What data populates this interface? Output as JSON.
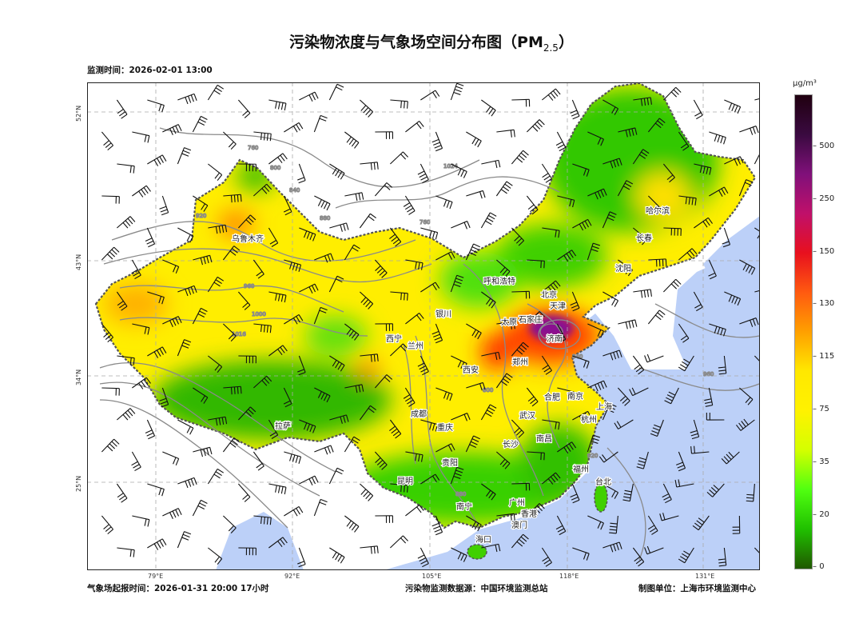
{
  "title": "污染物浓度与气象场空间分布图（PM",
  "title_sub": "2.5",
  "title_close": "）",
  "monitor_time": "监测时间：2026-02-01 13:00",
  "forecast_time": "气象场起报时间：2026-01-31 20:00 17小时",
  "data_source": "污染物监测数据源：中国环境监测总站",
  "producer": "制图单位：上海市环境监测中心",
  "lon_ticks": [
    "79°E",
    "92°E",
    "105°E",
    "118°E",
    "131°E"
  ],
  "lat_ticks": [
    "52°N",
    "43°N",
    "34°N",
    "25°N"
  ],
  "colorbar": {
    "unit": "μg/m³",
    "ticks": [
      "500",
      "250",
      "150",
      "130",
      "115",
      "75",
      "35",
      "20",
      "0"
    ],
    "colors": [
      "#200010",
      "#3a0a40",
      "#80107a",
      "#c0106a",
      "#e8101e",
      "#ff5a10",
      "#ffa000",
      "#ffe800",
      "#fff200",
      "#d4ff00",
      "#50ff10",
      "#20c000",
      "#205800"
    ]
  },
  "cities": [
    "乌鲁木齐",
    "哈尔滨",
    "长春",
    "沈阳",
    "呼和浩特",
    "北京",
    "天津",
    "银川",
    "太原",
    "石家庄",
    "西宁",
    "兰州",
    "济南",
    "西安",
    "郑州",
    "合肥",
    "南京",
    "上海",
    "成都",
    "武汉",
    "杭州",
    "重庆",
    "拉萨",
    "长沙",
    "南昌",
    "贵阳",
    "福州",
    "昆明",
    "台北",
    "南宁",
    "广州",
    "香港",
    "澳门",
    "海口"
  ],
  "contour_labels": [
    "760",
    "800",
    "840",
    "880",
    "920",
    "960",
    "1000",
    "1016",
    "1024"
  ],
  "colors": {
    "ocean": "#bcd0f8",
    "land_outside": "#ffffff",
    "contour": "#8a8a8a",
    "barb": "#111111"
  }
}
